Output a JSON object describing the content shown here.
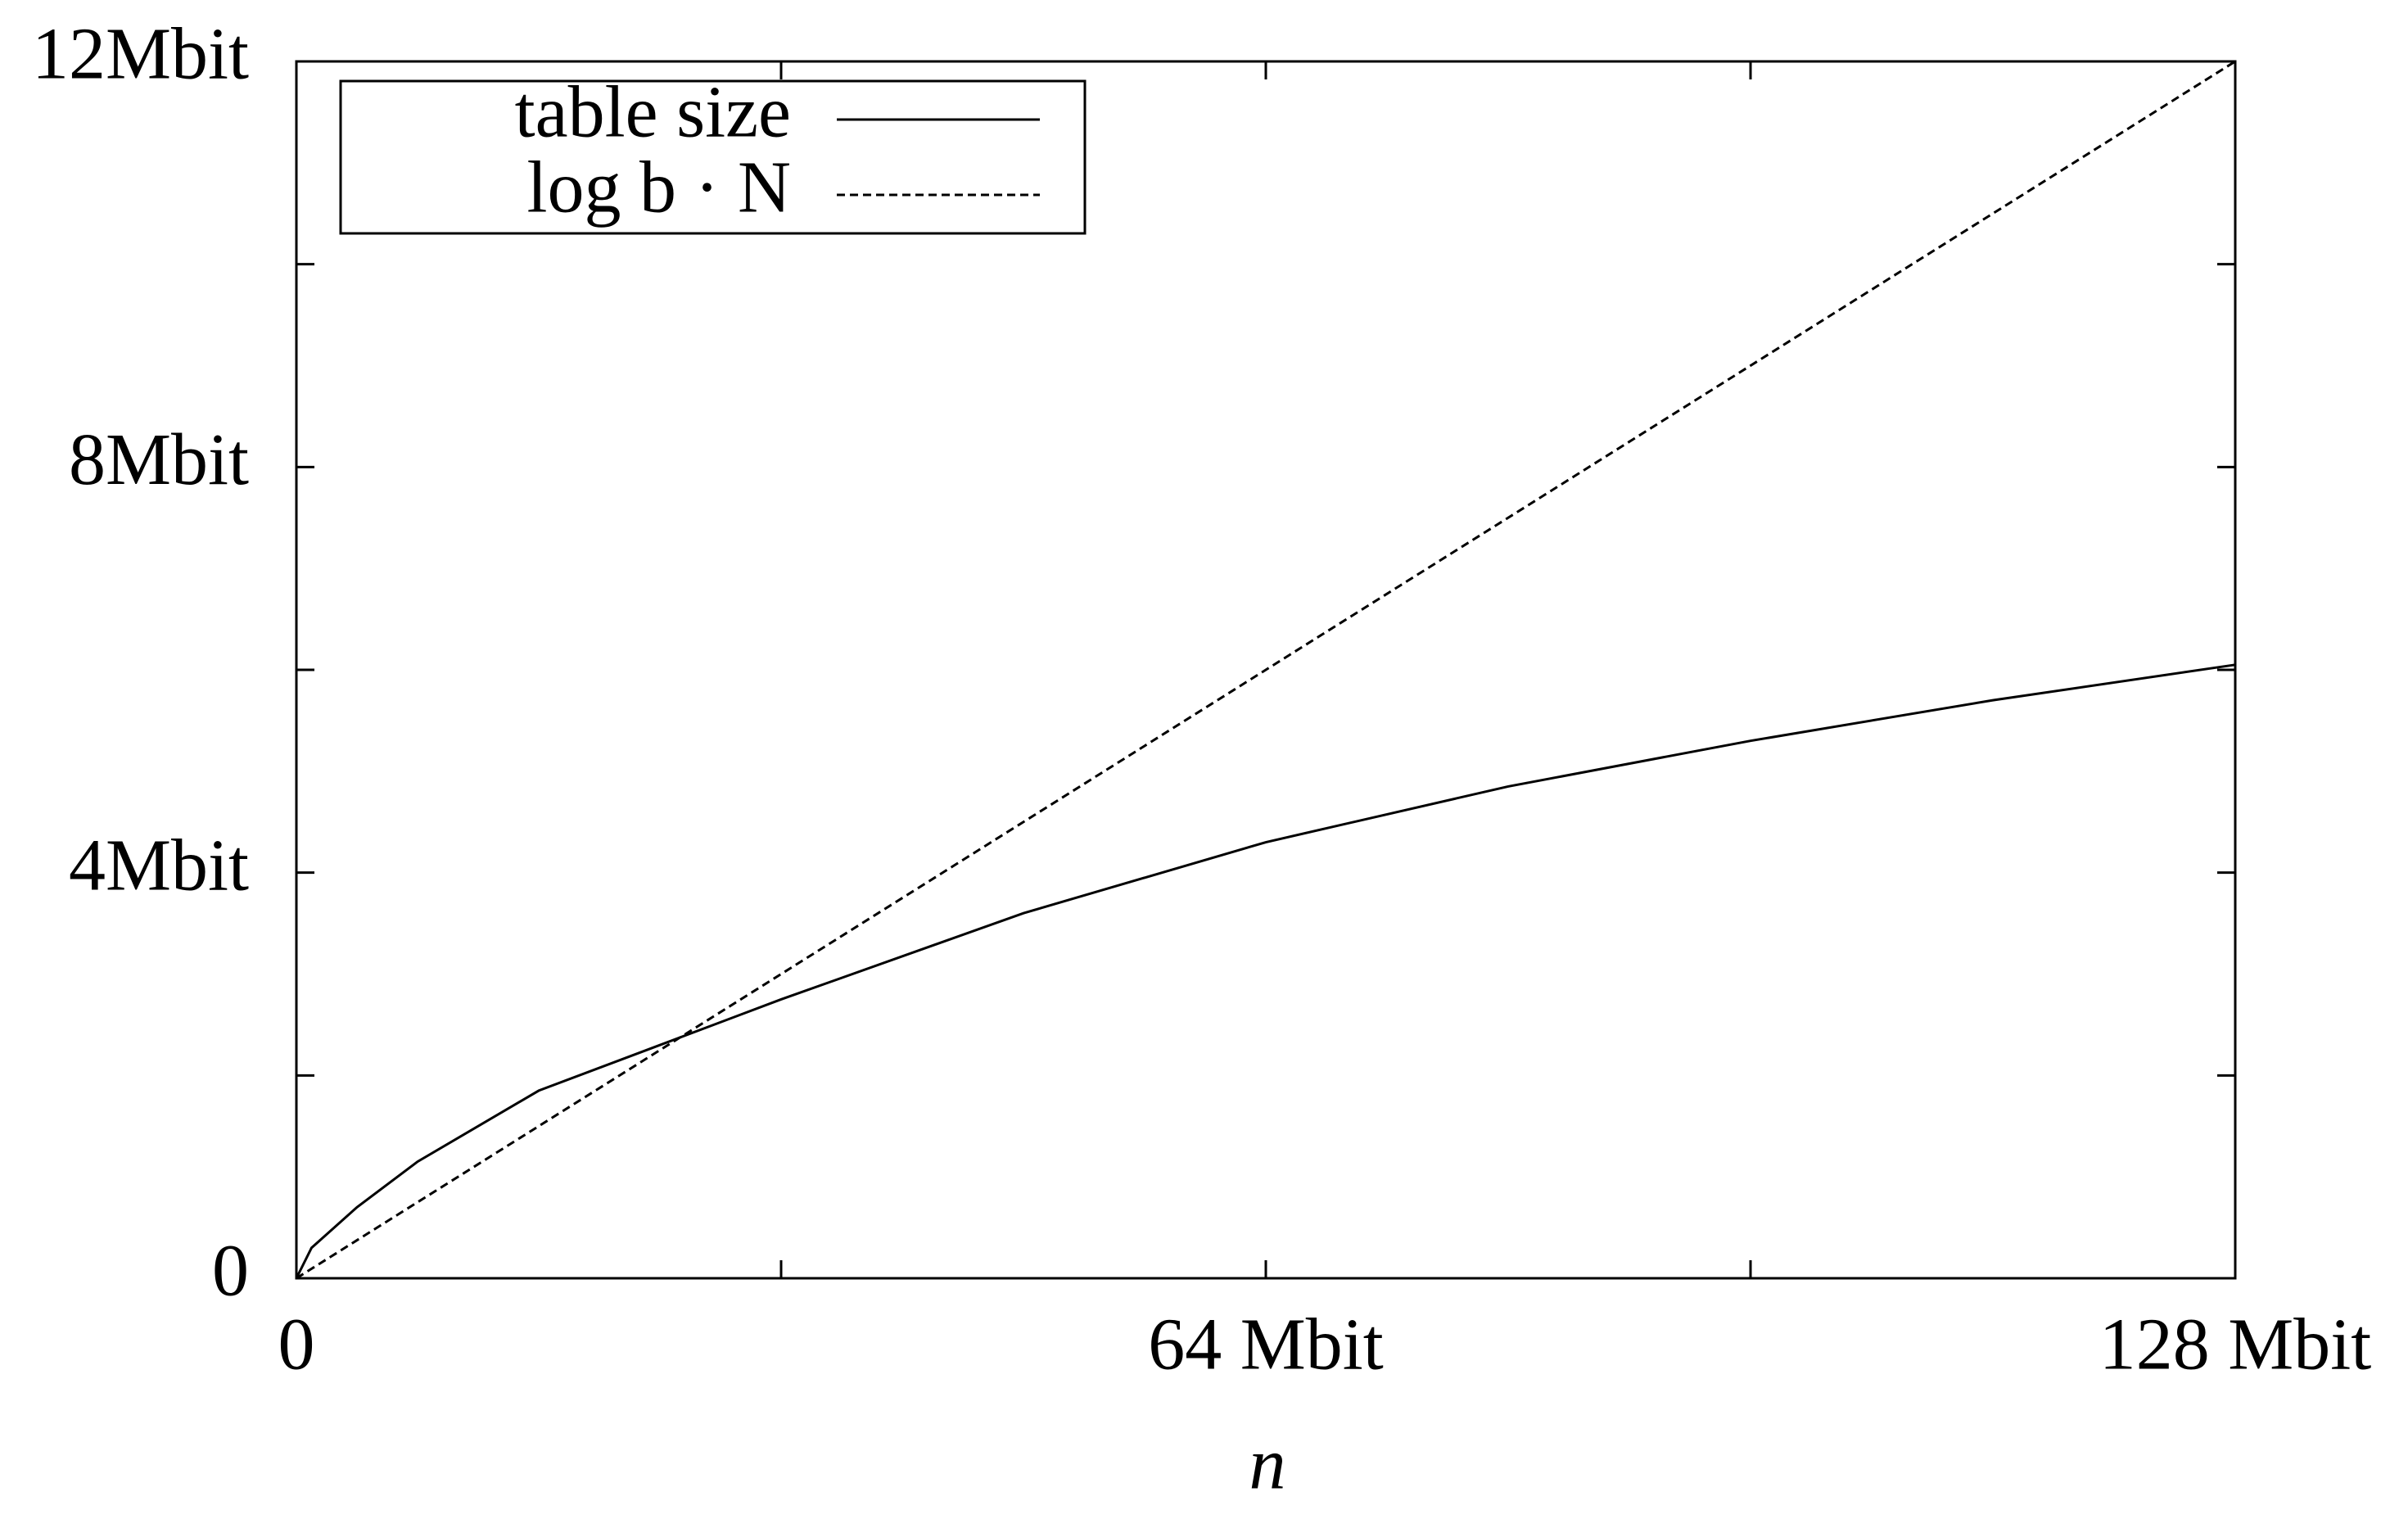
{
  "chart_data": {
    "type": "line",
    "xlabel": "n",
    "x": [
      0,
      1,
      4,
      8,
      16,
      24,
      32,
      48,
      64,
      80,
      96,
      112,
      128
    ],
    "series": [
      {
        "name": "table size",
        "color": "#000000",
        "dash": "solid",
        "values": [
          0,
          0.3,
          0.7,
          1.15,
          1.85,
          2.3,
          2.75,
          3.6,
          4.3,
          4.85,
          5.3,
          5.7,
          6.05
        ]
      },
      {
        "name": "log b · N",
        "color": "#000000",
        "dash": "dashed",
        "values": [
          0,
          0.09375,
          0.375,
          0.75,
          1.5,
          2.25,
          3,
          4.5,
          6,
          7.5,
          9,
          10.5,
          12
        ]
      }
    ],
    "xlim": [
      0,
      128
    ],
    "xticks": [
      0,
      {
        "value": 32,
        "label": null
      },
      {
        "value": 64,
        "label": "64 Mbit"
      },
      {
        "value": 96,
        "label": null
      },
      {
        "value": 128,
        "label": "128 Mbit"
      }
    ],
    "ylim": [
      0,
      12
    ],
    "yticks": [
      0,
      {
        "value": 2,
        "label": null
      },
      {
        "value": 4,
        "label": "4Mbit"
      },
      {
        "value": 6,
        "label": null
      },
      {
        "value": 8,
        "label": "8Mbit"
      },
      {
        "value": 10,
        "label": null
      },
      {
        "value": 12,
        "label": "12Mbit"
      }
    ],
    "grid": false,
    "legend": "top-left"
  }
}
